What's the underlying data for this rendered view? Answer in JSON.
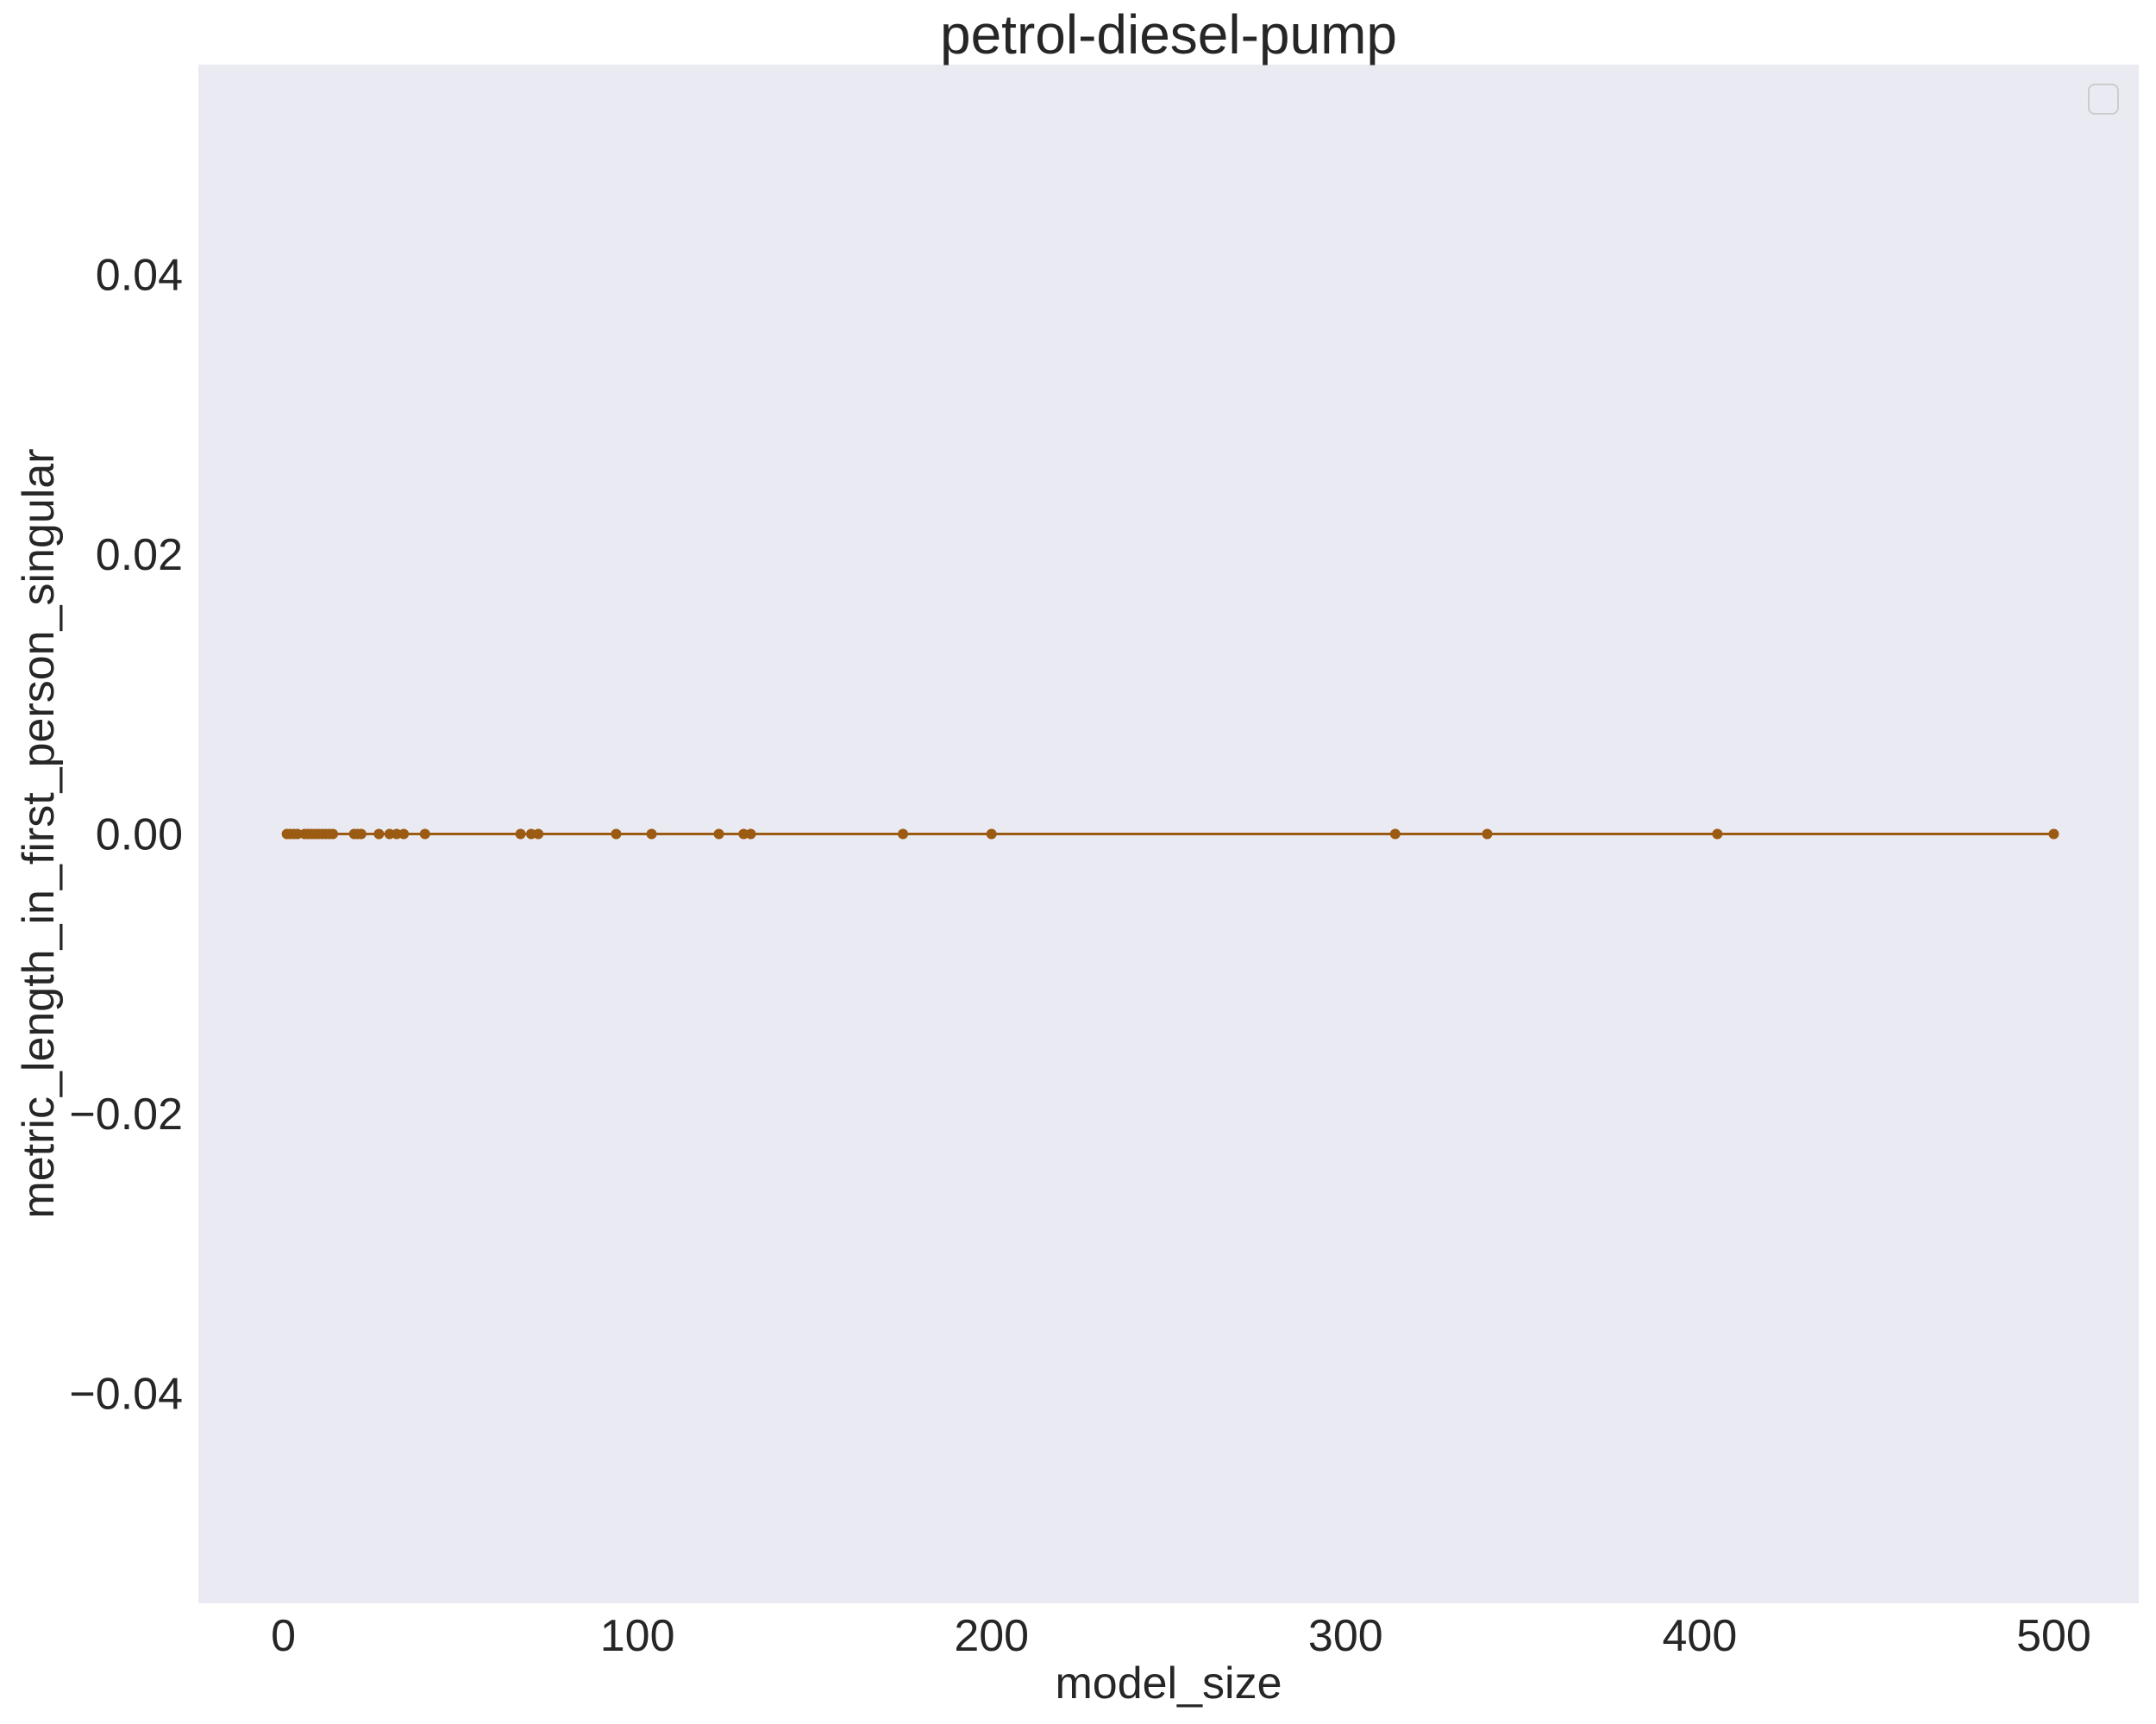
{
  "chart_data": {
    "type": "line",
    "title": "petrol-diesel-pump",
    "xlabel": "model_size",
    "ylabel": "metric_length_in_first_person_singular",
    "xlim": [
      -24,
      524
    ],
    "ylim": [
      -0.055,
      0.055
    ],
    "x_ticks": [
      0,
      100,
      200,
      300,
      400,
      500
    ],
    "x_tick_labels": [
      "0",
      "100",
      "200",
      "300",
      "400",
      "500"
    ],
    "y_ticks": [
      -0.04,
      -0.02,
      0.0,
      0.02,
      0.04
    ],
    "y_tick_labels": [
      "−0.04",
      "−0.02",
      "0.00",
      "0.02",
      "0.04"
    ],
    "grid": false,
    "legend": {
      "placement": "top-right",
      "entries": []
    },
    "background_color": "#eaeaf2",
    "series": [
      {
        "color": "#9c5b12",
        "marker": "circle",
        "x": [
          1,
          2,
          3,
          4,
          6,
          7,
          8,
          9,
          10,
          11,
          12,
          13,
          14,
          20,
          21,
          22,
          27,
          30,
          32,
          34,
          40,
          67,
          70,
          72,
          94,
          104,
          123,
          130,
          132,
          175,
          200,
          314,
          340,
          405,
          500
        ],
        "y": [
          0,
          0,
          0,
          0,
          0,
          0,
          0,
          0,
          0,
          0,
          0,
          0,
          0,
          0,
          0,
          0,
          0,
          0,
          0,
          0,
          0,
          0,
          0,
          0,
          0,
          0,
          0,
          0,
          0,
          0,
          0,
          0,
          0,
          0,
          0
        ]
      }
    ]
  }
}
